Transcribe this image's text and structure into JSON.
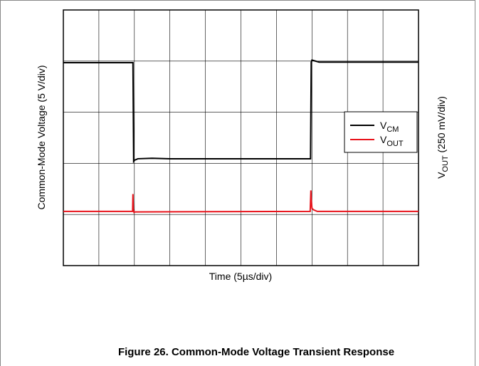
{
  "chart_data": {
    "type": "line",
    "caption": "Figure 26. Common-Mode Voltage Transient Response",
    "xlabel": "Time (5µs/div)",
    "ylabel": "Common-Mode Voltage (5 V/div)",
    "y2label": "VOUT (250 mV/div)",
    "xlim": [
      0,
      10
    ],
    "ylim": [
      0,
      5
    ],
    "xticks": [
      0,
      1,
      2,
      3,
      4,
      5,
      6,
      7,
      8,
      9,
      10
    ],
    "yticks": [
      0,
      1,
      2,
      3,
      4,
      5
    ],
    "grid": true,
    "legend": "right",
    "series": [
      {
        "name": "VCM",
        "color": "#000000",
        "x": [
          0,
          1.96,
          1.98,
          2.0,
          2.1,
          2.5,
          3.0,
          6.96,
          6.98,
          7.0,
          7.2,
          10
        ],
        "values": [
          3.97,
          3.97,
          2.04,
          2.06,
          2.09,
          2.1,
          2.09,
          2.09,
          3.98,
          4.02,
          3.98,
          3.98
        ]
      },
      {
        "name": "VOUT",
        "color": "#e8131b",
        "x": [
          0,
          1.95,
          1.96,
          1.97,
          1.99,
          2.02,
          6.95,
          6.97,
          6.98,
          7.0,
          7.05,
          7.15,
          10
        ],
        "values": [
          1.06,
          1.06,
          1.4,
          1.1,
          1.04,
          1.05,
          1.06,
          1.47,
          1.3,
          1.12,
          1.09,
          1.06,
          1.06
        ]
      }
    ]
  }
}
